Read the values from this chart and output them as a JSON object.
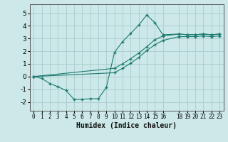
{
  "xlabel": "Humidex (Indice chaleur)",
  "background_color": "#cce8e8",
  "grid_color": "#aacccc",
  "line_color": "#1a7a6e",
  "xlim": [
    -0.5,
    23.5
  ],
  "ylim": [
    -2.7,
    5.7
  ],
  "xticks": [
    0,
    1,
    2,
    3,
    4,
    5,
    6,
    7,
    8,
    9,
    10,
    11,
    12,
    13,
    14,
    15,
    16,
    18,
    19,
    20,
    21,
    22,
    23
  ],
  "yticks": [
    -2,
    -1,
    0,
    1,
    2,
    3,
    4,
    5
  ],
  "line1_x": [
    0,
    1,
    2,
    3,
    4,
    5,
    6,
    7,
    8,
    9,
    10,
    11,
    12,
    13,
    14,
    15,
    16,
    18,
    19,
    20,
    21,
    22,
    23
  ],
  "line1_y": [
    0.0,
    -0.15,
    -0.55,
    -0.8,
    -1.1,
    -1.8,
    -1.8,
    -1.75,
    -1.75,
    -0.85,
    1.9,
    2.75,
    3.4,
    4.05,
    4.85,
    4.25,
    3.3,
    3.35,
    3.3,
    3.3,
    3.35,
    3.3,
    3.35
  ],
  "line2_x": [
    0,
    10,
    11,
    12,
    13,
    14,
    15,
    16,
    18,
    19,
    20,
    21,
    22,
    23
  ],
  "line2_y": [
    0.0,
    0.65,
    1.0,
    1.4,
    1.85,
    2.35,
    2.9,
    3.2,
    3.35,
    3.3,
    3.3,
    3.35,
    3.3,
    3.35
  ],
  "line3_x": [
    0,
    10,
    11,
    12,
    13,
    14,
    15,
    16,
    18,
    19,
    20,
    21,
    22,
    23
  ],
  "line3_y": [
    0.0,
    0.3,
    0.65,
    1.05,
    1.5,
    2.05,
    2.5,
    2.85,
    3.15,
    3.15,
    3.15,
    3.2,
    3.15,
    3.2
  ]
}
